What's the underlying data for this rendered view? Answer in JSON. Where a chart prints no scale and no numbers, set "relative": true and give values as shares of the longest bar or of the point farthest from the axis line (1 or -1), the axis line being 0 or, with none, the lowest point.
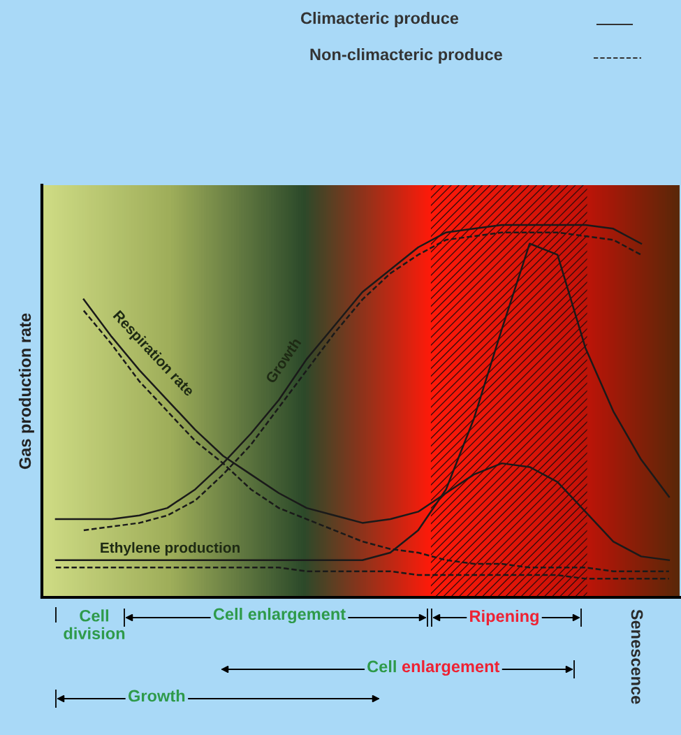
{
  "chart_data": {
    "type": "line",
    "relative": true,
    "ylabel": "Gas production rate",
    "categories": [
      null,
      null,
      null,
      null,
      null,
      null,
      null,
      null,
      null,
      null,
      null,
      null,
      null,
      null,
      null,
      null,
      null,
      null,
      null,
      null,
      null,
      null,
      null
    ],
    "series": [
      {
        "name": "Growth",
        "color": "#1a1a1a",
        "line_style": "solid",
        "values": [
          0.21,
          0.21,
          0.21,
          0.22,
          0.24,
          0.29,
          0.36,
          0.44,
          0.53,
          0.64,
          0.73,
          0.82,
          0.88,
          0.94,
          0.98,
          0.99,
          1.0,
          1.0,
          1.0,
          1.0,
          0.99,
          0.95,
          null
        ]
      },
      {
        "color": "#1a1a1a",
        "line_style": "dashed",
        "values": [
          null,
          0.18,
          0.19,
          0.2,
          0.22,
          0.26,
          0.33,
          0.41,
          0.51,
          0.61,
          0.71,
          0.8,
          0.87,
          0.92,
          0.96,
          0.97,
          0.98,
          0.98,
          0.98,
          0.97,
          0.96,
          0.92,
          null
        ]
      },
      {
        "name": "Respiration rate",
        "color": "#1a1a1a",
        "line_style": "solid",
        "values": [
          null,
          0.8,
          0.7,
          0.61,
          0.53,
          0.45,
          0.38,
          0.33,
          0.28,
          0.24,
          0.22,
          0.2,
          0.21,
          0.23,
          0.28,
          0.33,
          0.36,
          0.35,
          0.31,
          0.23,
          0.15,
          0.11,
          0.1
        ]
      },
      {
        "color": "#1a1a1a",
        "line_style": "dashed",
        "values": [
          null,
          0.77,
          0.68,
          0.58,
          0.5,
          0.42,
          0.36,
          0.29,
          0.24,
          0.21,
          0.18,
          0.15,
          0.13,
          0.12,
          0.1,
          0.09,
          0.09,
          0.08,
          0.08,
          0.08,
          0.07,
          0.07,
          0.07
        ]
      },
      {
        "name": "Ethylene production",
        "color": "#1a1a1a",
        "line_style": "solid",
        "values": [
          0.1,
          0.1,
          0.1,
          0.1,
          0.1,
          0.1,
          0.1,
          0.1,
          0.1,
          0.1,
          0.1,
          0.1,
          0.12,
          0.18,
          0.29,
          0.48,
          0.72,
          0.95,
          0.92,
          0.67,
          0.5,
          0.37,
          0.27
        ]
      },
      {
        "color": "#1a1a1a",
        "line_style": "dashed",
        "values": [
          0.08,
          0.08,
          0.08,
          0.08,
          0.08,
          0.08,
          0.08,
          0.08,
          0.08,
          0.07,
          0.07,
          0.07,
          0.07,
          0.06,
          0.06,
          0.06,
          0.06,
          0.06,
          0.06,
          0.05,
          0.05,
          0.05,
          0.05
        ]
      }
    ],
    "annotations": [
      "Climacteric produce",
      "Non-climacteric produce",
      "Cell division",
      "Cell enlargement",
      "Ripening",
      "Cell enlargement",
      "Growth",
      "Senescence"
    ]
  }
}
